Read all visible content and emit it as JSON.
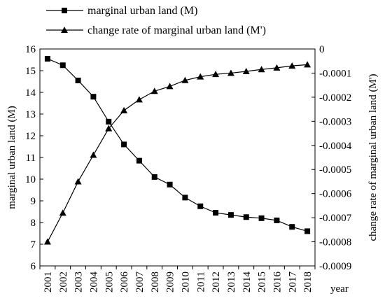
{
  "chart_data": {
    "type": "line",
    "title": "",
    "x": [
      "2001",
      "2002",
      "2003",
      "2004",
      "2005",
      "2006",
      "2007",
      "2008",
      "2009",
      "2010",
      "2011",
      "2012",
      "2013",
      "2014",
      "2015",
      "2016",
      "2017",
      "2018"
    ],
    "xlabel": "year",
    "y_left": {
      "label": "marginal urban land (M)",
      "ylim": [
        6,
        16
      ],
      "ticks": [
        "6",
        "7",
        "8",
        "9",
        "10",
        "11",
        "12",
        "13",
        "14",
        "15",
        "16"
      ]
    },
    "y_right": {
      "label": "change rate of marginal urban land (M')",
      "ylim": [
        -0.0009,
        0
      ],
      "ticks": [
        "0",
        "-0.0001",
        "-0.0002",
        "-0.0003",
        "-0.0004",
        "-0.0005",
        "-0.0006",
        "-0.0007",
        "-0.0008",
        "-0.0009"
      ]
    },
    "series": [
      {
        "name": "marginal urban land (M)",
        "axis": "left",
        "marker": "square",
        "values": [
          15.55,
          15.25,
          14.55,
          13.8,
          12.65,
          11.6,
          10.85,
          10.1,
          9.75,
          9.15,
          8.75,
          8.45,
          8.35,
          8.25,
          8.2,
          8.1,
          7.8,
          7.6
        ]
      },
      {
        "name": "change rate of marginal urban land (M')",
        "axis": "right",
        "marker": "triangle",
        "values": [
          -0.0008,
          -0.00068,
          -0.00055,
          -0.00044,
          -0.00033,
          -0.000255,
          -0.00021,
          -0.000175,
          -0.000155,
          -0.00013,
          -0.000115,
          -0.000105,
          -0.0001,
          -9.3e-05,
          -8.5e-05,
          -7.8e-05,
          -7e-05,
          -6.5e-05
        ]
      }
    ],
    "grid": false,
    "legend_position": "top"
  }
}
